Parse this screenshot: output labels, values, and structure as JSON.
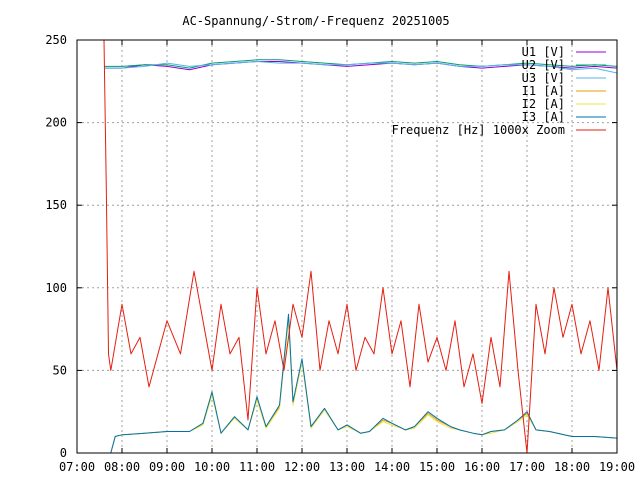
{
  "chart_data": {
    "type": "line",
    "title": "AC-Spannung/-Strom/-Frequenz 20251005",
    "xlabel": "",
    "ylabel": "",
    "x_range_hours": [
      7,
      19
    ],
    "ylim": [
      0,
      250
    ],
    "grid": true,
    "legend_position": "top-right",
    "x_ticks": [
      {
        "value": 7,
        "label": "07:00"
      },
      {
        "value": 8,
        "label": "08:00"
      },
      {
        "value": 9,
        "label": "09:00"
      },
      {
        "value": 10,
        "label": "10:00"
      },
      {
        "value": 11,
        "label": "11:00"
      },
      {
        "value": 12,
        "label": "12:00"
      },
      {
        "value": 13,
        "label": "13:00"
      },
      {
        "value": 14,
        "label": "14:00"
      },
      {
        "value": 15,
        "label": "15:00"
      },
      {
        "value": 16,
        "label": "16:00"
      },
      {
        "value": 17,
        "label": "17:00"
      },
      {
        "value": 18,
        "label": "18:00"
      },
      {
        "value": 19,
        "label": "19:00"
      }
    ],
    "y_ticks": [
      {
        "value": 0,
        "label": "0"
      },
      {
        "value": 50,
        "label": "50"
      },
      {
        "value": 100,
        "label": "100"
      },
      {
        "value": 150,
        "label": "150"
      },
      {
        "value": 200,
        "label": "200"
      },
      {
        "value": 250,
        "label": "250"
      }
    ],
    "series": [
      {
        "name": "U1 [V]",
        "color": "#9400d3",
        "x": [
          7.6,
          8.0,
          8.5,
          9.0,
          9.5,
          10.0,
          10.5,
          11.0,
          11.5,
          12.0,
          12.5,
          13.0,
          13.5,
          14.0,
          14.5,
          15.0,
          15.5,
          16.0,
          16.5,
          17.0,
          17.5,
          18.0,
          18.5,
          19.0
        ],
        "values": [
          233,
          233,
          235,
          234,
          232,
          235,
          236,
          237,
          237,
          236,
          235,
          234,
          235,
          236,
          235,
          236,
          234,
          233,
          234,
          235,
          234,
          233,
          234,
          233
        ]
      },
      {
        "name": "U2 [V]",
        "color": "#009e73",
        "x": [
          7.6,
          8.0,
          8.5,
          9.0,
          9.5,
          10.0,
          10.5,
          11.0,
          11.5,
          12.0,
          12.5,
          13.0,
          13.5,
          14.0,
          14.5,
          15.0,
          15.5,
          16.0,
          16.5,
          17.0,
          17.5,
          18.0,
          18.5,
          19.0
        ],
        "values": [
          234,
          234,
          235,
          235,
          233,
          236,
          237,
          238,
          238,
          237,
          236,
          235,
          236,
          237,
          236,
          237,
          235,
          234,
          235,
          236,
          235,
          234,
          235,
          234
        ]
      },
      {
        "name": "U3 [V]",
        "color": "#56b4e9",
        "x": [
          7.6,
          8.0,
          8.5,
          9.0,
          9.5,
          10.0,
          10.5,
          11.0,
          11.5,
          12.0,
          12.5,
          13.0,
          13.5,
          14.0,
          14.5,
          15.0,
          15.5,
          16.0,
          16.5,
          17.0,
          17.5,
          18.0,
          18.5,
          19.0
        ],
        "values": [
          233,
          233,
          234,
          236,
          234,
          235,
          236,
          237,
          236,
          236,
          235,
          235,
          236,
          236,
          235,
          236,
          234,
          234,
          235,
          235,
          234,
          232,
          233,
          230
        ]
      },
      {
        "name": "I1 [A]",
        "color": "#e69f00",
        "x": [
          7.75,
          7.85,
          8.0,
          8.5,
          9.0,
          9.5,
          9.8,
          10.0,
          10.2,
          10.5,
          10.8,
          11.0,
          11.2,
          11.5,
          11.7,
          11.8,
          12.0,
          12.2,
          12.5,
          12.8,
          13.0,
          13.3,
          13.5,
          13.8,
          14.0,
          14.3,
          14.5,
          14.8,
          15.0,
          15.3,
          15.5,
          15.8,
          16.0,
          16.2,
          16.5,
          16.8,
          17.0,
          17.2,
          17.5,
          18.0,
          18.5,
          19.0
        ],
        "values": [
          0,
          10,
          11,
          12,
          13,
          13,
          18,
          36,
          12,
          22,
          14,
          33,
          16,
          28,
          82,
          30,
          56,
          16,
          27,
          14,
          17,
          12,
          13,
          20,
          18,
          14,
          16,
          24,
          20,
          16,
          14,
          12,
          11,
          13,
          14,
          20,
          24,
          14,
          13,
          10,
          10,
          9
        ]
      },
      {
        "name": "I2 [A]",
        "color": "#f0e442",
        "x": [
          7.75,
          7.85,
          8.0,
          8.5,
          9.0,
          9.5,
          9.8,
          10.0,
          10.2,
          10.5,
          10.8,
          11.0,
          11.2,
          11.5,
          11.7,
          11.8,
          12.0,
          12.2,
          12.5,
          12.8,
          13.0,
          13.3,
          13.5,
          13.8,
          14.0,
          14.3,
          14.5,
          14.8,
          15.0,
          15.3,
          15.5,
          15.8,
          16.0,
          16.2,
          16.5,
          16.8,
          17.0,
          17.2,
          17.5,
          18.0,
          18.5,
          19.0
        ],
        "values": [
          0,
          10,
          11,
          12,
          13,
          13,
          17,
          35,
          12,
          21,
          14,
          32,
          15,
          27,
          80,
          29,
          55,
          15,
          26,
          14,
          16,
          12,
          13,
          19,
          17,
          14,
          15,
          23,
          19,
          15,
          14,
          12,
          11,
          12,
          14,
          19,
          23,
          14,
          13,
          10,
          10,
          9
        ]
      },
      {
        "name": "I3 [A]",
        "color": "#0072b2",
        "x": [
          7.75,
          7.85,
          8.0,
          8.5,
          9.0,
          9.5,
          9.8,
          10.0,
          10.2,
          10.5,
          10.8,
          11.0,
          11.2,
          11.5,
          11.7,
          11.8,
          12.0,
          12.2,
          12.5,
          12.8,
          13.0,
          13.3,
          13.5,
          13.8,
          14.0,
          14.3,
          14.5,
          14.8,
          15.0,
          15.3,
          15.5,
          15.8,
          16.0,
          16.2,
          16.5,
          16.8,
          17.0,
          17.2,
          17.5,
          18.0,
          18.5,
          19.0
        ],
        "values": [
          0,
          10,
          11,
          12,
          13,
          13,
          18,
          37,
          12,
          22,
          14,
          34,
          16,
          29,
          84,
          31,
          57,
          16,
          27,
          14,
          17,
          12,
          13,
          21,
          18,
          14,
          16,
          25,
          21,
          16,
          14,
          12,
          11,
          13,
          14,
          20,
          25,
          14,
          13,
          10,
          10,
          9
        ]
      },
      {
        "name": "Frequenz [Hz] 1000x Zoom",
        "color": "#e51e10",
        "x": [
          7.6,
          7.65,
          7.7,
          7.75,
          8.0,
          8.2,
          8.4,
          8.6,
          9.0,
          9.3,
          9.6,
          10.0,
          10.2,
          10.4,
          10.6,
          10.8,
          11.0,
          11.2,
          11.4,
          11.6,
          11.8,
          12.0,
          12.2,
          12.4,
          12.6,
          12.8,
          13.0,
          13.2,
          13.4,
          13.6,
          13.8,
          14.0,
          14.2,
          14.4,
          14.6,
          14.8,
          15.0,
          15.2,
          15.4,
          15.6,
          15.8,
          16.0,
          16.2,
          16.4,
          16.6,
          16.8,
          17.0,
          17.2,
          17.4,
          17.6,
          17.8,
          18.0,
          18.2,
          18.4,
          18.6,
          18.8,
          19.0
        ],
        "values": [
          250,
          160,
          60,
          50,
          90,
          60,
          70,
          40,
          80,
          60,
          110,
          50,
          90,
          60,
          70,
          20,
          100,
          60,
          80,
          50,
          90,
          70,
          110,
          50,
          80,
          60,
          90,
          50,
          70,
          60,
          100,
          60,
          80,
          40,
          90,
          55,
          70,
          50,
          80,
          40,
          60,
          30,
          70,
          40,
          110,
          50,
          0,
          90,
          60,
          100,
          70,
          90,
          60,
          80,
          50,
          100,
          50
        ]
      }
    ]
  }
}
